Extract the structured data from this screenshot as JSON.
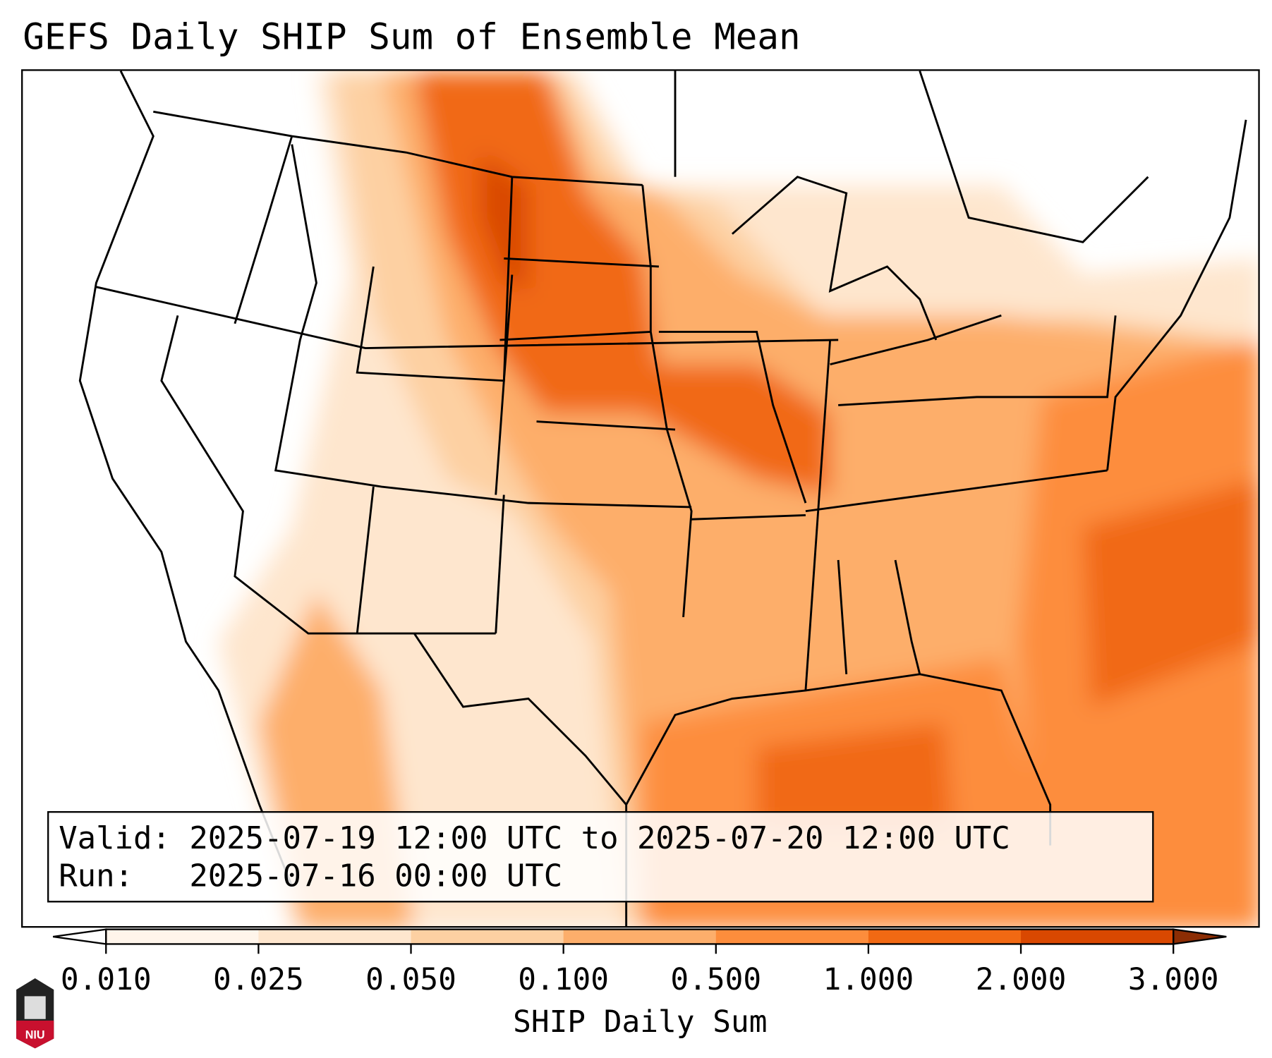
{
  "title": "GEFS Daily SHIP Sum of Ensemble Mean",
  "info": {
    "valid_label": "Valid:",
    "valid_value": "2025-07-19 12:00 UTC to 2025-07-20 12:00 UTC",
    "run_label": "Run:",
    "run_value": "2025-07-16 00:00 UTC"
  },
  "colorbar": {
    "label": "SHIP Daily Sum",
    "ticks": [
      "0.010",
      "0.025",
      "0.050",
      "0.100",
      "0.500",
      "1.000",
      "2.000",
      "3.000"
    ],
    "colors": [
      "#fff5eb",
      "#fee6ce",
      "#fdd0a2",
      "#fdae6b",
      "#fd8d3c",
      "#f16913",
      "#d94801"
    ],
    "under_color": "#ffffff",
    "over_color": "#8c2d04"
  },
  "logo": {
    "text": "NIU"
  }
}
